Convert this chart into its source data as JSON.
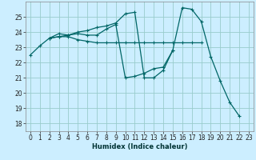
{
  "xlabel": "Humidex (Indice chaleur)",
  "bg_color": "#cceeff",
  "grid_color": "#99cccc",
  "line_color": "#006666",
  "xlim": [
    -0.5,
    23.5
  ],
  "ylim": [
    17.5,
    26.0
  ],
  "yticks": [
    18,
    19,
    20,
    21,
    22,
    23,
    24,
    25
  ],
  "xticks": [
    0,
    1,
    2,
    3,
    4,
    5,
    6,
    7,
    8,
    9,
    10,
    11,
    12,
    13,
    14,
    15,
    16,
    17,
    18,
    19,
    20,
    21,
    22,
    23
  ],
  "line1_x": [
    0,
    1,
    2,
    3,
    4,
    5,
    6,
    7,
    8,
    9,
    10,
    11,
    12,
    13,
    14,
    15,
    16,
    17,
    18
  ],
  "line1_y": [
    22.5,
    23.1,
    23.6,
    23.7,
    23.7,
    23.5,
    23.4,
    23.3,
    23.3,
    23.3,
    23.3,
    23.3,
    23.3,
    23.3,
    23.3,
    23.3,
    23.3,
    23.3,
    23.3
  ],
  "line2_x": [
    2,
    3,
    4,
    5,
    6,
    7,
    8,
    9,
    10,
    11,
    12,
    13,
    14,
    15
  ],
  "line2_y": [
    23.6,
    23.9,
    23.8,
    24.0,
    24.1,
    24.3,
    24.4,
    24.6,
    25.2,
    25.3,
    21.0,
    21.0,
    21.5,
    22.8
  ],
  "line3_x": [
    2,
    3,
    4,
    5,
    6,
    7,
    8,
    9,
    10,
    11,
    12,
    13,
    14,
    15,
    16,
    17,
    18,
    19,
    20,
    21,
    22
  ],
  "line3_y": [
    23.6,
    23.7,
    23.8,
    23.9,
    23.8,
    23.8,
    24.2,
    24.5,
    21.0,
    21.1,
    21.3,
    21.6,
    21.7,
    22.8,
    25.6,
    25.5,
    24.7,
    22.4,
    20.8,
    19.4,
    18.5
  ]
}
